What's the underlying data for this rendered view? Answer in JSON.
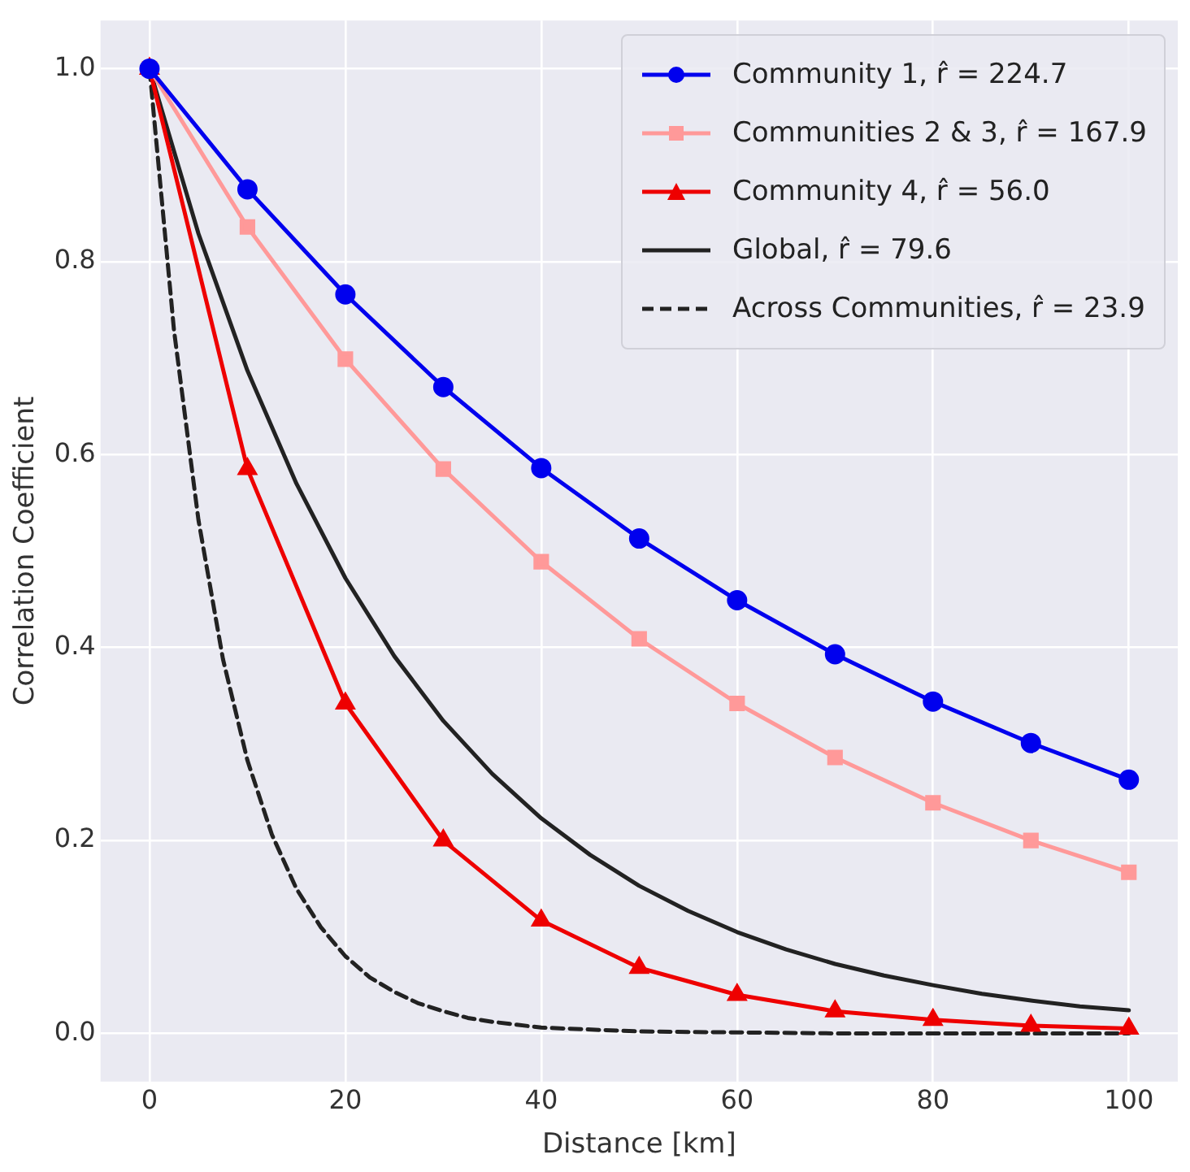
{
  "chart_data": {
    "type": "line",
    "xlabel": "Distance [km]",
    "ylabel": "Correlation Coefficient",
    "xlim": [
      -5,
      105
    ],
    "ylim": [
      -0.05,
      1.05
    ],
    "xticks": [
      0,
      20,
      40,
      60,
      80,
      100
    ],
    "yticks": [
      {
        "value": 0,
        "label": "0.0"
      },
      {
        "value": 0.2,
        "label": "0.2"
      },
      {
        "value": 0.4,
        "label": "0.4"
      },
      {
        "value": 0.6,
        "label": "0.6"
      },
      {
        "value": 0.8,
        "label": "0.8"
      },
      {
        "value": 1,
        "label": "1.0"
      }
    ],
    "grid": true,
    "legend": "top right",
    "series": [
      {
        "name": "Community 1, r̂ = 224.7",
        "color": "#0000ee",
        "marker": "circle",
        "line_style": "solid",
        "x": [
          0,
          10,
          20,
          30,
          40,
          50,
          60,
          70,
          80,
          90,
          100
        ],
        "values": [
          1,
          0.875,
          0.766,
          0.67,
          0.586,
          0.513,
          0.449,
          0.393,
          0.344,
          0.301,
          0.263
        ]
      },
      {
        "name": "Communities 2 & 3, r̂ = 167.9",
        "color": "#ff9999",
        "marker": "square",
        "line_style": "solid",
        "x": [
          0,
          10,
          20,
          30,
          40,
          50,
          60,
          70,
          80,
          90,
          100
        ],
        "values": [
          1,
          0.836,
          0.699,
          0.585,
          0.489,
          0.409,
          0.342,
          0.286,
          0.239,
          0.2,
          0.167
        ]
      },
      {
        "name": "Community 4, r̂ = 56.0",
        "color": "#ee0000",
        "marker": "triangle",
        "line_style": "solid",
        "x": [
          0,
          10,
          20,
          30,
          40,
          50,
          60,
          70,
          80,
          90,
          100
        ],
        "values": [
          1,
          0.585,
          0.342,
          0.2,
          0.117,
          0.068,
          0.04,
          0.023,
          0.014,
          0.008,
          0.005
        ]
      },
      {
        "name": "Global, r̂ = 79.6",
        "color": "#222222",
        "marker": "none",
        "line_style": "solid",
        "x": [
          0,
          5,
          10,
          15,
          20,
          25,
          30,
          35,
          40,
          45,
          50,
          55,
          60,
          65,
          70,
          75,
          80,
          85,
          90,
          95,
          100
        ],
        "values": [
          1,
          0.829,
          0.687,
          0.57,
          0.472,
          0.391,
          0.324,
          0.269,
          0.223,
          0.185,
          0.153,
          0.127,
          0.105,
          0.087,
          0.072,
          0.06,
          0.05,
          0.041,
          0.034,
          0.028,
          0.024
        ]
      },
      {
        "name": "Across Communities, r̂ = 23.9",
        "color": "#222222",
        "marker": "none",
        "line_style": "dashed",
        "x": [
          0,
          2.5,
          5,
          7.5,
          10,
          12.5,
          15,
          17.5,
          20,
          22.5,
          25,
          27.5,
          30,
          32.5,
          35,
          37.5,
          40,
          50,
          60,
          70,
          80,
          90,
          100
        ],
        "values": [
          1,
          0.729,
          0.532,
          0.388,
          0.283,
          0.206,
          0.15,
          0.11,
          0.08,
          0.058,
          0.043,
          0.031,
          0.023,
          0.016,
          0.012,
          0.009,
          0.006,
          0.002,
          0.001,
          0,
          0,
          0,
          0
        ]
      }
    ]
  }
}
